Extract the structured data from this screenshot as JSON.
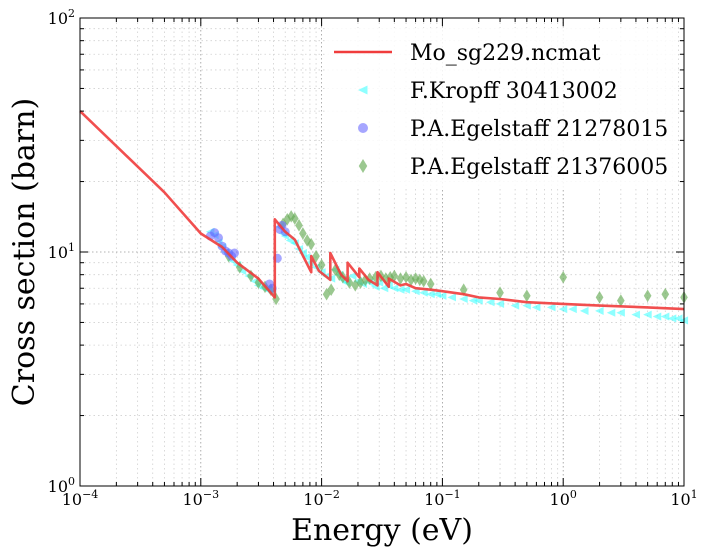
{
  "chart_data": {
    "type": "scatter",
    "xscale": "log",
    "yscale": "log",
    "xlim": [
      0.0001,
      10
    ],
    "ylim": [
      1,
      100
    ],
    "grid": true,
    "xlabel": "Energy (eV)",
    "ylabel": "Cross section (barn)",
    "legend_position": "top-right",
    "x_ticks": [
      {
        "value": 0.0001,
        "base": "10",
        "exp": "−4"
      },
      {
        "value": 0.001,
        "base": "10",
        "exp": "−3"
      },
      {
        "value": 0.01,
        "base": "10",
        "exp": "−2"
      },
      {
        "value": 0.1,
        "base": "10",
        "exp": "−1"
      },
      {
        "value": 1,
        "base": "10",
        "exp": "0"
      },
      {
        "value": 10,
        "base": "10",
        "exp": "1"
      }
    ],
    "y_ticks": [
      {
        "value": 1,
        "base": "10",
        "exp": "0"
      },
      {
        "value": 10,
        "base": "10",
        "exp": "1"
      },
      {
        "value": 100,
        "base": "10",
        "exp": "2"
      }
    ],
    "series": [
      {
        "name": "Mo_sg229.ncmat",
        "kind": "line",
        "color": "#f03c3c",
        "x": [
          0.0001,
          0.0005,
          0.001,
          0.0015,
          0.002,
          0.003,
          0.0041,
          0.0041,
          0.005,
          0.006,
          0.0082,
          0.0082,
          0.0095,
          0.0118,
          0.0118,
          0.0145,
          0.0164,
          0.0164,
          0.0205,
          0.0205,
          0.0245,
          0.029,
          0.029,
          0.036,
          0.036,
          0.045,
          0.05,
          0.06,
          0.08,
          0.1,
          0.15,
          0.2,
          0.3,
          0.5,
          1,
          2,
          5,
          10
        ],
        "y": [
          40,
          18,
          12,
          10.5,
          9,
          7.7,
          6.4,
          13.8,
          12.2,
          11.3,
          8.2,
          9.6,
          8.3,
          7.6,
          9.9,
          8.0,
          7.5,
          9.0,
          7.8,
          8.5,
          7.6,
          7.2,
          8.2,
          7.1,
          7.7,
          7.2,
          7.3,
          7.0,
          6.9,
          6.8,
          6.6,
          6.4,
          6.3,
          6.1,
          6.0,
          5.9,
          5.8,
          5.7
        ]
      },
      {
        "name": "F.Kropff 30413002",
        "kind": "marker",
        "marker": "triangle-left",
        "color": "#33ffff",
        "x": [
          0.0012,
          0.0013,
          0.0014,
          0.0015,
          0.0016,
          0.0017,
          0.0018,
          0.002,
          0.0022,
          0.0025,
          0.0028,
          0.003,
          0.0033,
          0.0036,
          0.0039,
          0.0045,
          0.0048,
          0.005,
          0.0055,
          0.006,
          0.0065,
          0.007,
          0.0075,
          0.008,
          0.009,
          0.01,
          0.011,
          0.012,
          0.013,
          0.014,
          0.015,
          0.016,
          0.018,
          0.02,
          0.022,
          0.025,
          0.028,
          0.03,
          0.033,
          0.036,
          0.04,
          0.045,
          0.05,
          0.06,
          0.07,
          0.08,
          0.09,
          0.1,
          0.12,
          0.15,
          0.18,
          0.2,
          0.25,
          0.3,
          0.4,
          0.5,
          0.6,
          0.8,
          1,
          1.2,
          1.5,
          2,
          2.5,
          3,
          4,
          5,
          6,
          7,
          8,
          9,
          10
        ],
        "y": [
          12.2,
          11.8,
          11.0,
          10.5,
          10.0,
          9.8,
          9.2,
          8.8,
          8.3,
          7.9,
          7.5,
          7.2,
          7.0,
          6.9,
          6.7,
          12.8,
          12.0,
          11.7,
          11.2,
          10.9,
          10.3,
          9.9,
          9.5,
          9.0,
          8.6,
          8.2,
          7.9,
          7.7,
          8.4,
          8.0,
          7.6,
          7.4,
          7.9,
          7.5,
          7.3,
          7.4,
          7.1,
          7.4,
          7.0,
          7.2,
          7.0,
          6.9,
          6.9,
          6.8,
          6.7,
          6.6,
          6.6,
          6.5,
          6.4,
          6.3,
          6.2,
          6.2,
          6.1,
          6.0,
          5.9,
          5.9,
          5.8,
          5.8,
          5.7,
          5.7,
          5.6,
          5.6,
          5.5,
          5.5,
          5.4,
          5.4,
          5.3,
          5.3,
          5.2,
          5.2,
          5.1
        ]
      },
      {
        "name": "P.A.Egelstaff 21278015",
        "kind": "marker",
        "marker": "circle",
        "color": "#6a6aff",
        "x": [
          0.0012,
          0.0013,
          0.0014,
          0.0015,
          0.0016,
          0.0017,
          0.0018,
          0.0019,
          0.0037,
          0.0039,
          0.0043,
          0.0045,
          0.0047,
          0.005
        ],
        "y": [
          11.7,
          12.1,
          11.5,
          10.6,
          10.1,
          9.9,
          9.6,
          9.9,
          7.3,
          7.0,
          9.4,
          12.5,
          13.0,
          12.2
        ]
      },
      {
        "name": "P.A.Egelstaff 21376005",
        "kind": "marker",
        "marker": "diamond",
        "color": "#66aa55",
        "x": [
          0.0017,
          0.0021,
          0.0026,
          0.003,
          0.0034,
          0.0038,
          0.0042,
          0.0048,
          0.0052,
          0.0056,
          0.006,
          0.0065,
          0.007,
          0.0076,
          0.0082,
          0.009,
          0.01,
          0.011,
          0.012,
          0.013,
          0.014,
          0.015,
          0.017,
          0.019,
          0.021,
          0.023,
          0.025,
          0.028,
          0.031,
          0.034,
          0.037,
          0.04,
          0.045,
          0.05,
          0.055,
          0.06,
          0.065,
          0.07,
          0.08,
          0.15,
          0.3,
          0.5,
          1,
          2,
          3,
          5,
          7,
          10
        ],
        "y": [
          9.6,
          8.6,
          7.9,
          7.4,
          7.1,
          6.9,
          6.3,
          13.2,
          13.8,
          14.2,
          13.9,
          13.0,
          12.0,
          11.2,
          10.8,
          9.6,
          8.8,
          6.6,
          6.9,
          8.4,
          8.0,
          7.8,
          7.4,
          7.2,
          7.4,
          7.6,
          7.7,
          7.8,
          7.9,
          7.7,
          7.8,
          7.9,
          7.7,
          7.8,
          7.6,
          7.7,
          7.6,
          7.5,
          7.3,
          6.9,
          6.7,
          6.5,
          7.8,
          6.4,
          6.2,
          6.5,
          6.6,
          6.4
        ]
      }
    ]
  }
}
